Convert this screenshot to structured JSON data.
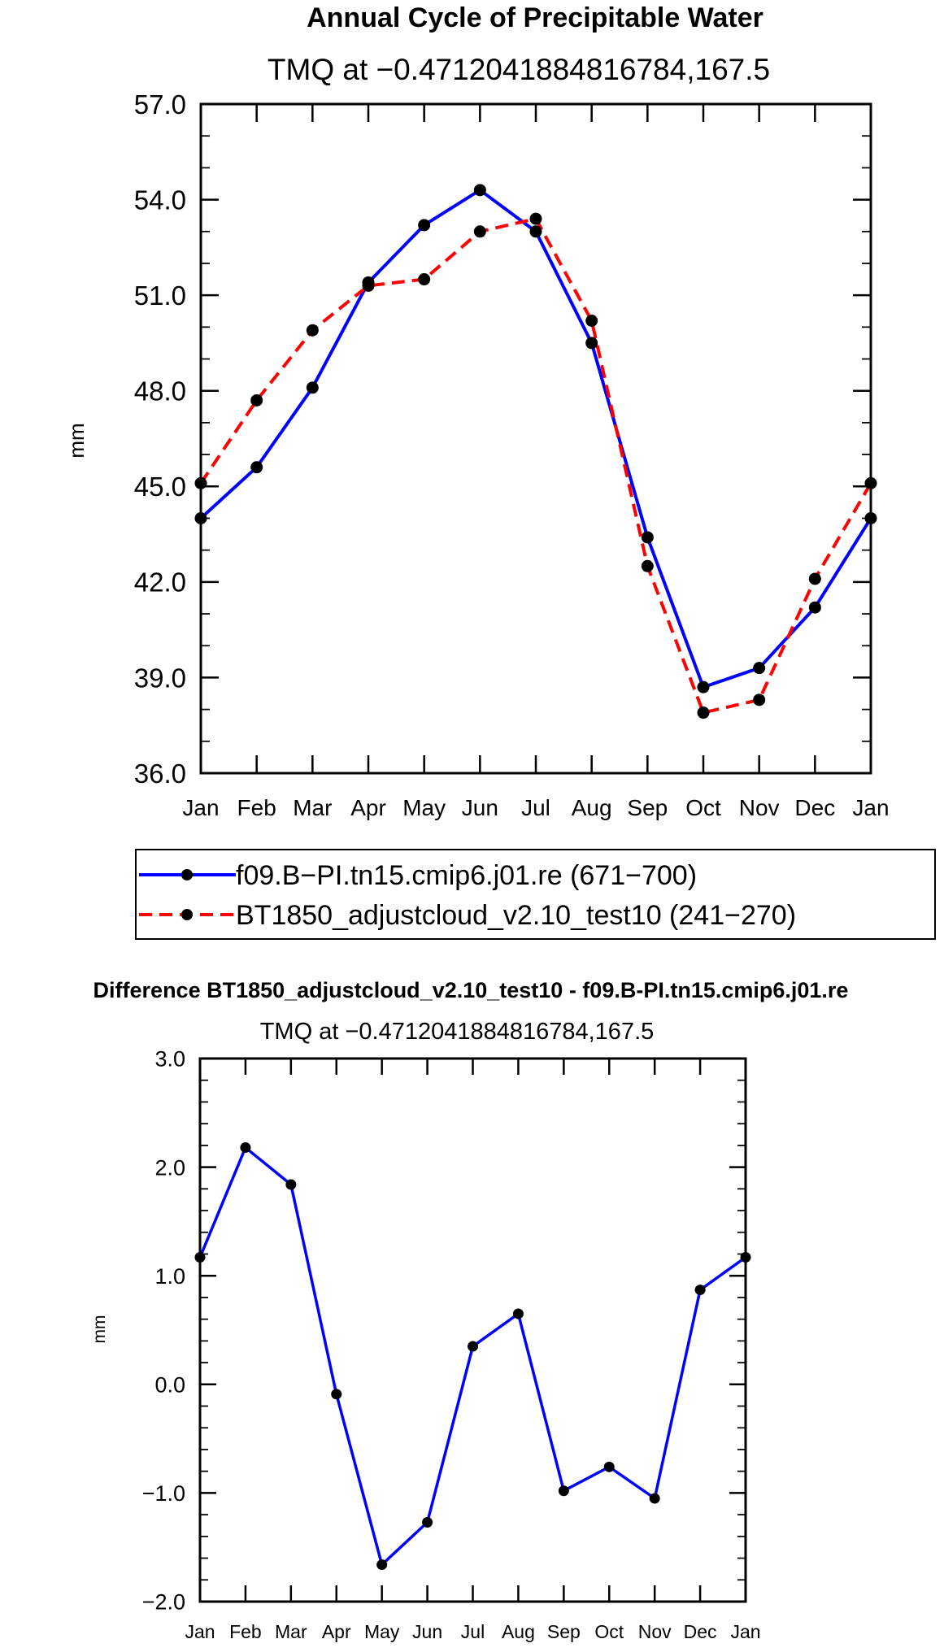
{
  "chart_data": [
    {
      "type": "line",
      "title": "Annual Cycle of Precipitable Water",
      "subtitle": "TMQ at −0.4712041884816784,167.5",
      "xlabel": "",
      "ylabel": "mm",
      "categories": [
        "Jan",
        "Feb",
        "Mar",
        "Apr",
        "May",
        "Jun",
        "Jul",
        "Aug",
        "Sep",
        "Oct",
        "Nov",
        "Dec",
        "Jan"
      ],
      "ylim": [
        36.0,
        57.0
      ],
      "yticks": [
        "36.0",
        "39.0",
        "42.0",
        "45.0",
        "48.0",
        "51.0",
        "54.0",
        "57.0"
      ],
      "yticks_values": [
        36,
        39,
        42,
        45,
        48,
        51,
        54,
        57
      ],
      "series": [
        {
          "name": "f09.B−PI.tn15.cmip6.j01.re (671−700)",
          "color": "#0000ff",
          "dash": "solid",
          "values": [
            44.0,
            45.6,
            48.1,
            51.4,
            53.2,
            54.3,
            53.0,
            49.5,
            43.4,
            38.7,
            39.3,
            41.2,
            44.0
          ]
        },
        {
          "name": "BT1850_adjustcloud_v2.10_test10 (241−270)",
          "color": "#ff0000",
          "dash": "dashed",
          "values": [
            45.1,
            47.7,
            49.9,
            51.3,
            51.5,
            53.0,
            53.4,
            50.2,
            42.5,
            37.9,
            38.3,
            42.1,
            45.1
          ]
        }
      ]
    },
    {
      "type": "line",
      "title": "Difference BT1850_adjustcloud_v2.10_test10 - f09.B-PI.tn15.cmip6.j01.re",
      "subtitle": "TMQ at −0.4712041884816784,167.5",
      "xlabel": "",
      "ylabel": "mm",
      "categories": [
        "Jan",
        "Feb",
        "Mar",
        "Apr",
        "May",
        "Jun",
        "Jul",
        "Aug",
        "Sep",
        "Oct",
        "Nov",
        "Dec",
        "Jan"
      ],
      "ylim": [
        -2.0,
        3.0
      ],
      "yticks": [
        "−2.0",
        "−1.0",
        "0.0",
        "1.0",
        "2.0",
        "3.0"
      ],
      "yticks_values": [
        -2,
        -1,
        0,
        1,
        2,
        3
      ],
      "series": [
        {
          "name": "Difference",
          "color": "#0000ff",
          "dash": "solid",
          "values": [
            1.17,
            2.18,
            1.84,
            -0.09,
            -1.66,
            -1.27,
            0.35,
            0.65,
            -0.98,
            -0.76,
            -1.05,
            0.87,
            1.17
          ]
        }
      ]
    }
  ]
}
